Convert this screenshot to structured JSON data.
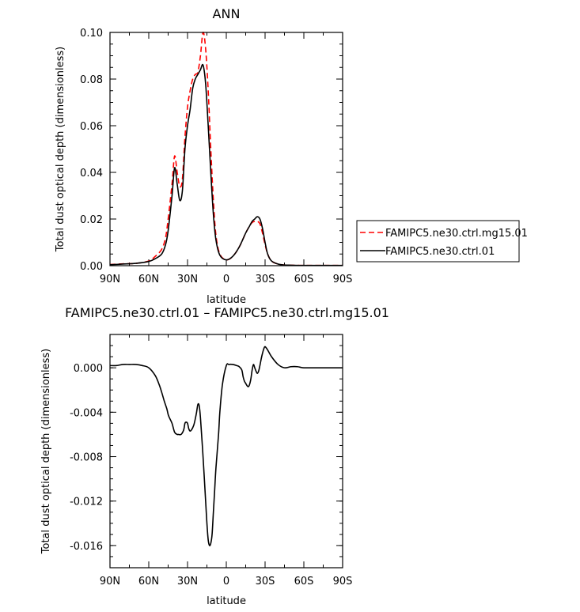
{
  "chart_data": [
    {
      "type": "line",
      "title": "ANN",
      "xlabel": "latitude",
      "ylabel": "Total dust optical depth (dimensionless)",
      "xlim": [
        90,
        -90
      ],
      "ylim": [
        0.0,
        0.1
      ],
      "x_ticks": [
        90,
        60,
        30,
        0,
        -30,
        -60,
        -90
      ],
      "x_tick_labels": [
        "90N",
        "60N",
        "30N",
        "0",
        "30S",
        "60S",
        "90S"
      ],
      "y_ticks": [
        0.0,
        0.02,
        0.04,
        0.06,
        0.08,
        0.1
      ],
      "y_tick_labels": [
        "0.00",
        "0.02",
        "0.04",
        "0.06",
        "0.08",
        "0.10"
      ],
      "grid": false,
      "legend_position": "right",
      "series": [
        {
          "name": "FAMIPC5.ne30.ctrl.mg15.01",
          "color": "#ff0000",
          "dash": "dashed",
          "x": [
            90,
            80,
            70,
            60,
            55,
            50,
            47,
            45,
            42,
            40,
            38,
            36,
            34,
            32,
            30,
            28,
            26,
            24,
            22,
            20,
            18,
            16,
            14,
            12,
            10,
            8,
            5,
            0,
            -5,
            -10,
            -15,
            -18,
            -20,
            -22,
            -24,
            -26,
            -28,
            -30,
            -32,
            -35,
            -40,
            -45,
            -50,
            -60,
            -70,
            -80,
            -90
          ],
          "y": [
            0.0005,
            0.0008,
            0.001,
            0.002,
            0.004,
            0.007,
            0.012,
            0.02,
            0.035,
            0.047,
            0.04,
            0.034,
            0.037,
            0.055,
            0.068,
            0.075,
            0.08,
            0.082,
            0.083,
            0.09,
            0.1,
            0.093,
            0.075,
            0.05,
            0.028,
            0.013,
            0.005,
            0.0025,
            0.004,
            0.008,
            0.014,
            0.017,
            0.0185,
            0.019,
            0.019,
            0.018,
            0.014,
            0.009,
            0.005,
            0.002,
            0.0007,
            0.0003,
            0.0002,
            0.0001,
            0.0001,
            0.0001,
            0.0001
          ]
        },
        {
          "name": "FAMIPC5.ne30.ctrl.01",
          "color": "#000000",
          "dash": "solid",
          "x": [
            90,
            80,
            70,
            60,
            55,
            50,
            47,
            45,
            42,
            40,
            38,
            36,
            34,
            32,
            30,
            28,
            26,
            24,
            22,
            20,
            18,
            16,
            14,
            12,
            10,
            8,
            5,
            0,
            -5,
            -10,
            -15,
            -18,
            -20,
            -22,
            -24,
            -26,
            -28,
            -30,
            -32,
            -35,
            -40,
            -45,
            -50,
            -60,
            -70,
            -80,
            -90
          ],
          "y": [
            0.0004,
            0.0007,
            0.001,
            0.0018,
            0.003,
            0.005,
            0.009,
            0.015,
            0.03,
            0.042,
            0.035,
            0.028,
            0.032,
            0.05,
            0.06,
            0.067,
            0.076,
            0.08,
            0.082,
            0.084,
            0.086,
            0.078,
            0.06,
            0.04,
            0.022,
            0.011,
            0.0045,
            0.0025,
            0.004,
            0.008,
            0.014,
            0.017,
            0.019,
            0.02,
            0.021,
            0.02,
            0.016,
            0.01,
            0.005,
            0.002,
            0.0007,
            0.0003,
            0.0002,
            0.0001,
            0.0001,
            0.0001,
            0.0001
          ]
        }
      ]
    },
    {
      "type": "line",
      "title": "FAMIPC5.ne30.ctrl.01 – FAMIPC5.ne30.ctrl.mg15.01",
      "xlabel": "latitude",
      "ylabel": "Total dust optical depth (dimensionless)",
      "xlim": [
        90,
        -90
      ],
      "ylim": [
        -0.018,
        0.003
      ],
      "x_ticks": [
        90,
        60,
        30,
        0,
        -30,
        -60,
        -90
      ],
      "x_tick_labels": [
        "90N",
        "60N",
        "30N",
        "0",
        "30S",
        "60S",
        "90S"
      ],
      "y_ticks": [
        0.0,
        -0.004,
        -0.008,
        -0.012,
        -0.016
      ],
      "y_tick_labels": [
        "0.000",
        "-0.004",
        "-0.008",
        "-0.012",
        "-0.016"
      ],
      "grid": false,
      "series": [
        {
          "color": "#000000",
          "dash": "solid",
          "x": [
            90,
            85,
            80,
            75,
            70,
            65,
            60,
            55,
            52,
            50,
            48,
            46,
            45,
            44,
            42,
            40,
            38,
            37,
            35,
            33,
            32,
            31,
            30,
            29,
            28,
            27,
            26,
            25,
            24,
            23,
            22,
            21,
            20,
            18,
            16,
            15,
            14,
            13,
            12,
            11,
            10,
            9,
            8,
            6,
            5,
            3,
            0,
            -2,
            -5,
            -8,
            -10,
            -12,
            -13,
            -14,
            -15,
            -16,
            -17,
            -18,
            -19,
            -20,
            -21,
            -22,
            -23,
            -24,
            -25,
            -26,
            -27,
            -28,
            -29,
            -30,
            -32,
            -35,
            -40,
            -45,
            -50,
            -55,
            -60,
            -70,
            -80,
            -90
          ],
          "y": [
            0.0002,
            0.0002,
            0.0003,
            0.0003,
            0.0003,
            0.0002,
            0.0,
            -0.0007,
            -0.0015,
            -0.0022,
            -0.003,
            -0.0037,
            -0.0042,
            -0.0045,
            -0.005,
            -0.0058,
            -0.006,
            -0.006,
            -0.006,
            -0.0056,
            -0.005,
            -0.0049,
            -0.005,
            -0.0055,
            -0.0057,
            -0.0056,
            -0.0054,
            -0.0051,
            -0.0046,
            -0.004,
            -0.0033,
            -0.0034,
            -0.0045,
            -0.008,
            -0.012,
            -0.014,
            -0.0155,
            -0.016,
            -0.0158,
            -0.015,
            -0.013,
            -0.011,
            -0.009,
            -0.006,
            -0.004,
            -0.0015,
            0.0002,
            0.0003,
            0.0003,
            0.0002,
            0.0001,
            -0.0002,
            -0.0008,
            -0.0012,
            -0.0014,
            -0.0016,
            -0.0017,
            -0.0015,
            -0.001,
            -0.0002,
            0.0003,
            0.0,
            -0.0003,
            -0.0005,
            -0.0003,
            0.0002,
            0.0008,
            0.0013,
            0.0017,
            0.0019,
            0.0016,
            0.001,
            0.0003,
            0.0,
            0.0001,
            0.0001,
            0.0,
            0.0,
            0.0,
            0.0
          ]
        }
      ]
    }
  ]
}
